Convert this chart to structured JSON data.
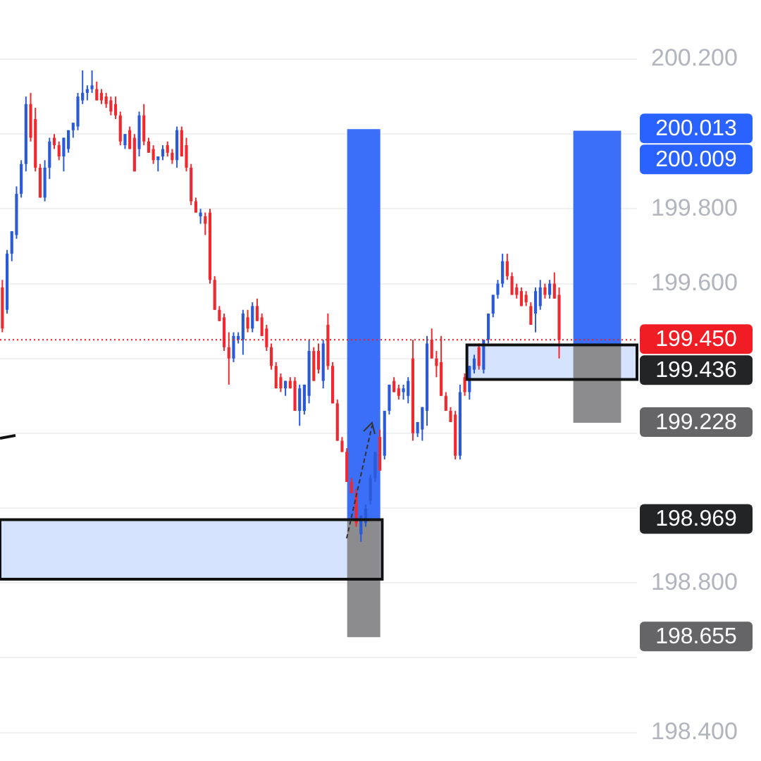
{
  "chart_data": {
    "type": "candlestick",
    "categories": [
      null,
      null,
      null,
      null,
      null,
      null,
      null,
      null,
      null,
      null,
      null,
      null,
      null,
      null,
      null,
      null,
      null,
      null,
      null,
      null,
      null,
      null,
      null,
      null,
      null,
      null,
      null,
      null,
      null,
      null,
      null,
      null,
      null,
      null,
      null,
      null,
      null,
      null,
      null,
      null,
      null,
      null,
      null,
      null,
      null,
      null,
      null,
      null,
      null,
      null,
      null,
      null,
      null,
      null,
      null,
      null,
      null,
      null,
      null,
      null,
      null,
      null,
      null,
      null,
      null,
      null,
      null,
      null,
      null,
      null,
      null,
      null,
      null,
      null,
      null,
      null,
      null,
      null,
      null,
      null,
      null,
      null,
      null,
      null,
      null,
      null,
      null,
      null,
      null,
      null,
      null,
      null,
      null,
      null,
      null,
      null,
      null,
      null,
      null,
      null,
      null,
      null,
      null,
      null,
      null,
      null,
      null,
      null,
      null,
      null,
      null,
      null,
      null,
      null,
      null,
      null,
      null,
      null,
      null,
      null,
      null,
      null,
      null,
      null,
      null,
      null,
      null,
      null,
      null,
      null,
      null,
      null,
      null,
      null,
      null
    ],
    "ohlc": [
      [
        199.59,
        199.61,
        199.47,
        199.48
      ],
      [
        199.53,
        199.69,
        199.52,
        199.68
      ],
      [
        199.68,
        199.74,
        199.66,
        199.74
      ],
      [
        199.73,
        199.86,
        199.72,
        199.84
      ],
      [
        199.84,
        199.93,
        199.83,
        199.92
      ],
      [
        199.92,
        200.1,
        199.9,
        200.08
      ],
      [
        200.08,
        200.11,
        199.98,
        199.99
      ],
      [
        200.04,
        200.07,
        199.9,
        199.91
      ],
      [
        199.91,
        199.92,
        199.83,
        199.83
      ],
      [
        199.83,
        199.93,
        199.82,
        199.91
      ],
      [
        199.91,
        199.99,
        199.88,
        199.98
      ],
      [
        199.99,
        200.0,
        199.96,
        199.97
      ],
      [
        199.97,
        199.98,
        199.93,
        199.94
      ],
      [
        199.94,
        199.99,
        199.9,
        199.99
      ],
      [
        199.96,
        200.01,
        199.95,
        200.01
      ],
      [
        200.01,
        200.03,
        199.99,
        200.03
      ],
      [
        200.02,
        200.11,
        200.01,
        200.1
      ],
      [
        200.09,
        200.17,
        200.08,
        200.11
      ],
      [
        200.11,
        200.13,
        200.09,
        200.12
      ],
      [
        200.12,
        200.17,
        200.11,
        200.13
      ],
      [
        200.12,
        200.14,
        200.09,
        200.09
      ],
      [
        200.11,
        200.12,
        200.08,
        200.09
      ],
      [
        200.1,
        200.11,
        200.07,
        200.08
      ],
      [
        200.09,
        200.1,
        200.05,
        200.06
      ],
      [
        200.08,
        200.1,
        200.04,
        200.05
      ],
      [
        200.05,
        200.06,
        199.97,
        199.98
      ],
      [
        199.97,
        200.0,
        199.96,
        200.0
      ],
      [
        200.01,
        200.02,
        199.96,
        199.96
      ],
      [
        199.99,
        200.0,
        199.9,
        199.9
      ],
      [
        199.96,
        200.06,
        199.94,
        200.05
      ],
      [
        200.05,
        200.08,
        199.97,
        199.98
      ],
      [
        199.98,
        199.99,
        199.95,
        199.95
      ],
      [
        199.96,
        199.97,
        199.92,
        199.93
      ],
      [
        199.93,
        199.94,
        199.9,
        199.94
      ],
      [
        199.94,
        199.97,
        199.93,
        199.96
      ],
      [
        199.97,
        199.98,
        199.94,
        199.95
      ],
      [
        199.95,
        199.96,
        199.92,
        199.93
      ],
      [
        199.93,
        200.02,
        199.91,
        200.01
      ],
      [
        200.01,
        200.02,
        199.94,
        199.94
      ],
      [
        199.97,
        199.99,
        199.9,
        199.91
      ],
      [
        199.91,
        199.92,
        199.81,
        199.82
      ],
      [
        199.82,
        199.83,
        199.79,
        199.79
      ],
      [
        199.78,
        199.8,
        199.76,
        199.79
      ],
      [
        199.78,
        199.79,
        199.73,
        199.76
      ],
      [
        199.79,
        199.8,
        199.6,
        199.61
      ],
      [
        199.61,
        199.62,
        199.53,
        199.53
      ],
      [
        199.53,
        199.54,
        199.5,
        199.5
      ],
      [
        199.51,
        199.52,
        199.42,
        199.43
      ],
      [
        199.43,
        199.47,
        199.33,
        199.4
      ],
      [
        199.4,
        199.47,
        199.39,
        199.46
      ],
      [
        199.45,
        199.47,
        199.44,
        199.46
      ],
      [
        199.45,
        199.53,
        199.41,
        199.52
      ],
      [
        199.51,
        199.53,
        199.47,
        199.48
      ],
      [
        199.48,
        199.55,
        199.47,
        199.54
      ],
      [
        199.54,
        199.56,
        199.5,
        199.5
      ],
      [
        199.51,
        199.52,
        199.46,
        199.46
      ],
      [
        199.48,
        199.49,
        199.42,
        199.43
      ],
      [
        199.43,
        199.44,
        199.37,
        199.38
      ],
      [
        199.38,
        199.39,
        199.32,
        199.32
      ],
      [
        199.35,
        199.36,
        199.31,
        199.32
      ],
      [
        199.32,
        199.34,
        199.3,
        199.34
      ],
      [
        199.34,
        199.35,
        199.32,
        199.32
      ],
      [
        199.34,
        199.35,
        199.26,
        199.26
      ],
      [
        199.26,
        199.33,
        199.22,
        199.32
      ],
      [
        199.26,
        199.33,
        199.25,
        199.33
      ],
      [
        199.3,
        199.45,
        199.28,
        199.42
      ],
      [
        199.42,
        199.43,
        199.34,
        199.34
      ],
      [
        199.42,
        199.44,
        199.36,
        199.37
      ],
      [
        199.34,
        199.45,
        199.32,
        199.44
      ],
      [
        199.49,
        199.52,
        199.37,
        199.38
      ],
      [
        199.38,
        199.39,
        199.28,
        199.28
      ],
      [
        199.28,
        199.29,
        199.18,
        199.18
      ],
      [
        199.18,
        199.19,
        199.15,
        199.15
      ],
      [
        199.15,
        199.16,
        199.07,
        199.07
      ],
      [
        199.07,
        199.08,
        199.04,
        199.04
      ],
      [
        199.04,
        199.05,
        198.95,
        198.96
      ],
      [
        198.93,
        198.98,
        198.91,
        198.98
      ],
      [
        198.96,
        199.01,
        198.95,
        199.0
      ],
      [
        199.02,
        199.09,
        199.01,
        199.08
      ],
      [
        199.08,
        199.15,
        199.07,
        199.15
      ],
      [
        199.19,
        199.21,
        199.1,
        199.1
      ],
      [
        199.14,
        199.26,
        199.13,
        199.26
      ],
      [
        199.26,
        199.33,
        199.25,
        199.33
      ],
      [
        199.34,
        199.35,
        199.31,
        199.31
      ],
      [
        199.32,
        199.33,
        199.29,
        199.3
      ],
      [
        199.31,
        199.33,
        199.29,
        199.32
      ],
      [
        199.3,
        199.35,
        199.28,
        199.34
      ],
      [
        199.4,
        199.45,
        199.18,
        199.2
      ],
      [
        199.2,
        199.23,
        199.19,
        199.23
      ],
      [
        199.21,
        199.27,
        199.18,
        199.27
      ],
      [
        199.26,
        199.46,
        199.22,
        199.44
      ],
      [
        199.45,
        199.48,
        199.4,
        199.4
      ],
      [
        199.4,
        199.42,
        199.35,
        199.38
      ],
      [
        199.39,
        199.46,
        199.3,
        199.3
      ],
      [
        199.3,
        199.31,
        199.26,
        199.26
      ],
      [
        199.26,
        199.27,
        199.23,
        199.23
      ],
      [
        199.25,
        199.26,
        199.13,
        199.14
      ],
      [
        199.14,
        199.33,
        199.13,
        199.31
      ],
      [
        199.35,
        199.36,
        199.3,
        199.31
      ],
      [
        199.31,
        199.38,
        199.29,
        199.38
      ],
      [
        199.37,
        199.41,
        199.36,
        199.4
      ],
      [
        199.43,
        199.44,
        199.37,
        199.38
      ],
      [
        199.37,
        199.45,
        199.36,
        199.45
      ],
      [
        199.45,
        199.52,
        199.44,
        199.52
      ],
      [
        199.52,
        199.57,
        199.51,
        199.57
      ],
      [
        199.57,
        199.61,
        199.56,
        199.6
      ],
      [
        199.6,
        199.68,
        199.59,
        199.66
      ],
      [
        199.66,
        199.68,
        199.61,
        199.62
      ],
      [
        199.62,
        199.63,
        199.57,
        199.57
      ],
      [
        199.59,
        199.6,
        199.56,
        199.57
      ],
      [
        199.58,
        199.59,
        199.54,
        199.54
      ],
      [
        199.57,
        199.58,
        199.54,
        199.55
      ],
      [
        199.54,
        199.55,
        199.49,
        199.49
      ],
      [
        199.52,
        199.59,
        199.47,
        199.58
      ],
      [
        199.54,
        199.61,
        199.53,
        199.59
      ],
      [
        199.59,
        199.6,
        199.56,
        199.57
      ],
      [
        199.57,
        199.61,
        199.56,
        199.6
      ],
      [
        199.6,
        199.63,
        199.56,
        199.56
      ],
      [
        199.57,
        199.59,
        199.4,
        199.45
      ],
      null,
      null,
      null,
      null,
      null,
      null,
      null,
      null,
      null,
      null,
      null,
      null,
      null,
      null,
      null,
      null
    ],
    "colors": [
      "#ee2a30",
      "#2a5ad8",
      "#2a5ad8",
      "#2a5ad8",
      "#2a5ad8",
      "#2a5ad8",
      "#ee2a30",
      "#ee2a30",
      "#ee2a30",
      "#2a5ad8",
      "#2a5ad8",
      "#ee2a30",
      "#ee2a30",
      "#2a5ad8",
      "#2a5ad8",
      "#2a5ad8",
      "#2a5ad8",
      "#2a5ad8",
      "#2a5ad8",
      "#2a5ad8",
      "#ee2a30",
      "#ee2a30",
      "#ee2a30",
      "#ee2a30",
      "#ee2a30",
      "#ee2a30",
      "#2a5ad8",
      "#ee2a30",
      "#ee2a30",
      "#2a5ad8",
      "#ee2a30",
      "#ee2a30",
      "#ee2a30",
      "#2a5ad8",
      "#2a5ad8",
      "#ee2a30",
      "#ee2a30",
      "#2a5ad8",
      "#ee2a30",
      "#ee2a30",
      "#ee2a30",
      "#ee2a30",
      "#2a5ad8",
      "#ee2a30",
      "#ee2a30",
      "#ee2a30",
      "#ee2a30",
      "#ee2a30",
      "#ee2a30",
      "#2a5ad8",
      "#2a5ad8",
      "#2a5ad8",
      "#ee2a30",
      "#2a5ad8",
      "#ee2a30",
      "#ee2a30",
      "#ee2a30",
      "#ee2a30",
      "#ee2a30",
      "#ee2a30",
      "#2a5ad8",
      "#ee2a30",
      "#ee2a30",
      "#2a5ad8",
      "#2a5ad8",
      "#2a5ad8",
      "#ee2a30",
      "#ee2a30",
      "#2a5ad8",
      "#ee2a30",
      "#ee2a30",
      "#ee2a30",
      "#ee2a30",
      "#ee2a30",
      "#ee2a30",
      "#ee2a30",
      "#2a5ad8",
      "#2a5ad8",
      "#2a5ad8",
      "#2a5ad8",
      "#ee2a30",
      "#2a5ad8",
      "#2a5ad8",
      "#ee2a30",
      "#ee2a30",
      "#2a5ad8",
      "#2a5ad8",
      "#ee2a30",
      "#2a5ad8",
      "#2a5ad8",
      "#2a5ad8",
      "#ee2a30",
      "#ee2a30",
      "#ee2a30",
      "#ee2a30",
      "#ee2a30",
      "#ee2a30",
      "#2a5ad8",
      "#ee2a30",
      "#2a5ad8",
      "#2a5ad8",
      "#ee2a30",
      "#2a5ad8",
      "#2a5ad8",
      "#2a5ad8",
      "#2a5ad8",
      "#2a5ad8",
      "#ee2a30",
      "#ee2a30",
      "#ee2a30",
      "#ee2a30",
      "#ee2a30",
      "#ee2a30",
      "#2a5ad8",
      "#2a5ad8",
      "#ee2a30",
      "#2a5ad8",
      "#ee2a30",
      "#ee2a30",
      null,
      null,
      null,
      null,
      null,
      null,
      null,
      null,
      null,
      null,
      null,
      null,
      null,
      null,
      null,
      null
    ],
    "ylim": [
      198.4,
      200.2
    ],
    "yticks": [
      {
        "value": 198.4,
        "label": "198.400"
      },
      {
        "value": 198.6,
        "label": null
      },
      {
        "value": 198.8,
        "label": "198.800"
      },
      {
        "value": 199.0,
        "label": null
      },
      {
        "value": 199.2,
        "label": null
      },
      {
        "value": 199.4,
        "label": null
      },
      {
        "value": 199.6,
        "label": "199.600"
      },
      {
        "value": 199.8,
        "label": "199.800"
      },
      {
        "value": 200.0,
        "label": null
      },
      {
        "value": 200.2,
        "label": "200.200"
      },
      {
        "value": 200.013,
        "label": "200.013"
      },
      {
        "value": 199.228,
        "label": "199.228"
      },
      {
        "value": 198.969,
        "label": "198.969"
      },
      {
        "value": 198.655,
        "label": "198.655"
      }
    ],
    "tick_labels": "y",
    "grid": "y",
    "bands": [
      {
        "axis": "y",
        "from": 198.81,
        "to": 198.969,
        "color": "#d6e3fe"
      },
      {
        "axis": "y",
        "from": 199.344,
        "to": 199.436,
        "color": "#d6e3fe",
        "label": "199.436"
      },
      {
        "axis": "y",
        "from": 198.969,
        "to": 200.013,
        "color": "#3b6ff7"
      },
      {
        "axis": "y",
        "from": 198.655,
        "to": 198.969,
        "color": "#8c8c8e"
      },
      {
        "axis": "y",
        "from": 199.436,
        "to": 200.009,
        "color": "#3b6ff7",
        "label": "200.009"
      },
      {
        "axis": "y",
        "from": 199.228,
        "to": 199.436,
        "color": "#8c8c8e"
      }
    ],
    "ref_lines": [
      {
        "axis": "y",
        "value": 199.45,
        "label": "199.450",
        "color": "#f01e24",
        "line_style": "dotted"
      }
    ]
  }
}
